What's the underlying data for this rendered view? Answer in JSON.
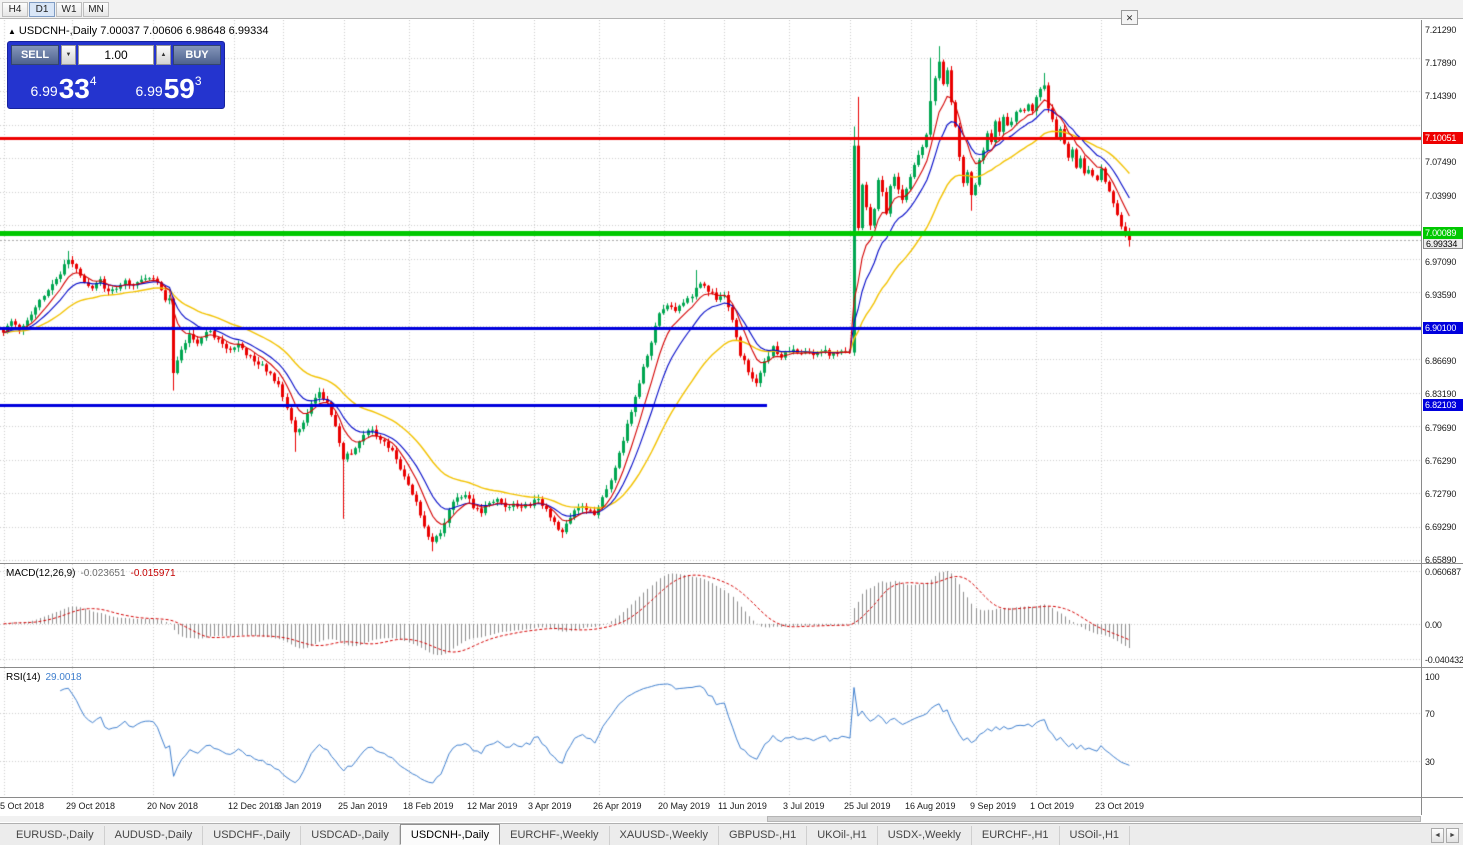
{
  "toolbar": {
    "timeframes": [
      "H4",
      "D1",
      "W1",
      "MN"
    ],
    "active_timeframe": "D1",
    "close_icon": "✕"
  },
  "chart_header": {
    "marker": "▲",
    "symbol": "USDCNH-,Daily",
    "ohlc": "7.00037 7.00606 6.98648 6.99334"
  },
  "oct": {
    "sell_label": "SELL",
    "buy_label": "BUY",
    "volume": "1.00",
    "spinner_down": "▼",
    "spinner_up": "▲",
    "sell_price_prefix": "6.99",
    "sell_price_big": "33",
    "sell_price_sup": "4",
    "buy_price_prefix": "6.99",
    "buy_price_big": "59",
    "buy_price_sup": "3"
  },
  "macd_panel": {
    "label": "MACD(12,26,9)",
    "value_main": "-0.023651",
    "value_signal": "-0.015971",
    "axis_labels": [
      "0.060687",
      "0.00",
      "-0.040432"
    ],
    "axis_values": [
      0.060687,
      0,
      -0.040432
    ]
  },
  "rsi_panel": {
    "label": "RSI(14)",
    "value": "29.0018",
    "axis_labels": [
      "100",
      "70",
      "30"
    ],
    "axis_values": [
      100,
      70,
      30
    ]
  },
  "tabs": {
    "items": [
      "EURUSD-,Daily",
      "AUDUSD-,Daily",
      "USDCHF-,Daily",
      "USDCAD-,Daily",
      "USDCNH-,Daily",
      "EURCHF-,Weekly",
      "XAUUSD-,Weekly",
      "GBPUSD-,H1",
      "UKOil-,H1",
      "USDX-,Weekly",
      "EURCHF-,H1",
      "USOil-,H1"
    ],
    "active_index": 4,
    "scroll_left_icon": "◄",
    "scroll_right_icon": "►"
  },
  "chart_data": {
    "type": "candlestick",
    "title": "USDCNH-,Daily",
    "symbol": "USDCNH-",
    "timeframe": "Daily",
    "current": {
      "open": 7.00037,
      "high": 7.00606,
      "low": 6.98648,
      "close": 6.99334
    },
    "y_min": 6.6589,
    "y_max": 7.2129,
    "grid_step": 0.035,
    "y_grid_labels": [
      "6.65890",
      "6.69290",
      "6.72790",
      "6.76290",
      "6.79690",
      "6.83190",
      "6.86690",
      "6.90190",
      "6.93590",
      "6.97090",
      "7.00490",
      "7.03990",
      "7.07490",
      "7.10890",
      "7.14390",
      "7.17890",
      "7.21290"
    ],
    "x_ticks": {
      "labels": [
        "5 Oct 2018",
        "29 Oct 2018",
        "20 Nov 2018",
        "12 Dec 2018",
        "3 Jan 2019",
        "25 Jan 2019",
        "18 Feb 2019",
        "12 Mar 2019",
        "3 Apr 2019",
        "26 Apr 2019",
        "20 May 2019",
        "11 Jun 2019",
        "3 Jul 2019",
        "25 Jul 2019",
        "16 Aug 2019",
        "9 Sep 2019",
        "1 Oct 2019",
        "23 Oct 2019"
      ],
      "candle_indices": [
        0,
        17,
        37,
        57,
        69,
        84,
        100,
        116,
        131,
        147,
        163,
        178,
        194,
        209,
        224,
        240,
        255,
        271
      ]
    },
    "n_candles": 279,
    "close_anchors": [
      [
        0,
        6.895
      ],
      [
        2,
        6.91
      ],
      [
        4,
        6.9
      ],
      [
        6,
        6.908
      ],
      [
        8,
        6.922
      ],
      [
        10,
        6.935
      ],
      [
        12,
        6.948
      ],
      [
        14,
        6.958
      ],
      [
        16,
        6.975
      ],
      [
        18,
        6.962
      ],
      [
        20,
        6.948
      ],
      [
        22,
        6.942
      ],
      [
        24,
        6.952
      ],
      [
        26,
        6.938
      ],
      [
        28,
        6.944
      ],
      [
        30,
        6.95
      ],
      [
        32,
        6.946
      ],
      [
        34,
        6.95
      ],
      [
        36,
        6.953
      ],
      [
        38,
        6.948
      ],
      [
        40,
        6.932
      ],
      [
        41,
        6.933
      ],
      [
        42,
        6.856
      ],
      [
        44,
        6.878
      ],
      [
        46,
        6.896
      ],
      [
        48,
        6.886
      ],
      [
        50,
        6.899
      ],
      [
        52,
        6.893
      ],
      [
        54,
        6.884
      ],
      [
        56,
        6.879
      ],
      [
        58,
        6.886
      ],
      [
        60,
        6.874
      ],
      [
        62,
        6.867
      ],
      [
        64,
        6.861
      ],
      [
        66,
        6.852
      ],
      [
        68,
        6.843
      ],
      [
        70,
        6.818
      ],
      [
        72,
        6.792
      ],
      [
        74,
        6.801
      ],
      [
        76,
        6.822
      ],
      [
        78,
        6.833
      ],
      [
        80,
        6.824
      ],
      [
        82,
        6.8
      ],
      [
        84,
        6.764
      ],
      [
        86,
        6.772
      ],
      [
        88,
        6.784
      ],
      [
        90,
        6.796
      ],
      [
        92,
        6.79
      ],
      [
        94,
        6.783
      ],
      [
        96,
        6.772
      ],
      [
        98,
        6.752
      ],
      [
        100,
        6.738
      ],
      [
        102,
        6.718
      ],
      [
        104,
        6.695
      ],
      [
        106,
        6.676
      ],
      [
        108,
        6.688
      ],
      [
        110,
        6.712
      ],
      [
        112,
        6.724
      ],
      [
        114,
        6.728
      ],
      [
        116,
        6.714
      ],
      [
        118,
        6.71
      ],
      [
        120,
        6.72
      ],
      [
        122,
        6.723
      ],
      [
        124,
        6.713
      ],
      [
        126,
        6.719
      ],
      [
        128,
        6.714
      ],
      [
        130,
        6.717
      ],
      [
        132,
        6.723
      ],
      [
        134,
        6.71
      ],
      [
        136,
        6.698
      ],
      [
        138,
        6.687
      ],
      [
        140,
        6.705
      ],
      [
        142,
        6.715
      ],
      [
        144,
        6.712
      ],
      [
        146,
        6.708
      ],
      [
        148,
        6.724
      ],
      [
        150,
        6.741
      ],
      [
        152,
        6.771
      ],
      [
        154,
        6.799
      ],
      [
        156,
        6.828
      ],
      [
        158,
        6.86
      ],
      [
        160,
        6.888
      ],
      [
        162,
        6.915
      ],
      [
        164,
        6.927
      ],
      [
        166,
        6.92
      ],
      [
        168,
        6.927
      ],
      [
        170,
        6.934
      ],
      [
        172,
        6.95
      ],
      [
        174,
        6.941
      ],
      [
        176,
        6.932
      ],
      [
        178,
        6.934
      ],
      [
        180,
        6.912
      ],
      [
        182,
        6.874
      ],
      [
        184,
        6.857
      ],
      [
        186,
        6.843
      ],
      [
        188,
        6.866
      ],
      [
        190,
        6.881
      ],
      [
        192,
        6.872
      ],
      [
        194,
        6.879
      ],
      [
        196,
        6.874
      ],
      [
        198,
        6.879
      ],
      [
        200,
        6.875
      ],
      [
        202,
        6.879
      ],
      [
        204,
        6.873
      ],
      [
        206,
        6.877
      ],
      [
        208,
        6.875
      ],
      [
        209,
        6.878
      ],
      [
        210,
        7.09
      ],
      [
        211,
        7.005
      ],
      [
        212,
        7.05
      ],
      [
        213,
        7.03
      ],
      [
        214,
        7.006
      ],
      [
        215,
        7.028
      ],
      [
        216,
        7.056
      ],
      [
        217,
        7.042
      ],
      [
        218,
        7.02
      ],
      [
        219,
        7.048
      ],
      [
        220,
        7.058
      ],
      [
        221,
        7.044
      ],
      [
        222,
        7.036
      ],
      [
        223,
        7.046
      ],
      [
        224,
        7.06
      ],
      [
        225,
        7.07
      ],
      [
        226,
        7.082
      ],
      [
        227,
        7.092
      ],
      [
        228,
        7.106
      ],
      [
        229,
        7.138
      ],
      [
        230,
        7.163
      ],
      [
        231,
        7.179
      ],
      [
        232,
        7.156
      ],
      [
        233,
        7.169
      ],
      [
        234,
        7.136
      ],
      [
        235,
        7.114
      ],
      [
        236,
        7.082
      ],
      [
        237,
        7.052
      ],
      [
        238,
        7.066
      ],
      [
        239,
        7.042
      ],
      [
        240,
        7.052
      ],
      [
        241,
        7.076
      ],
      [
        242,
        7.086
      ],
      [
        243,
        7.106
      ],
      [
        244,
        7.096
      ],
      [
        245,
        7.115
      ],
      [
        246,
        7.108
      ],
      [
        247,
        7.12
      ],
      [
        248,
        7.112
      ],
      [
        249,
        7.117
      ],
      [
        250,
        7.125
      ],
      [
        251,
        7.131
      ],
      [
        252,
        7.127
      ],
      [
        253,
        7.136
      ],
      [
        254,
        7.13
      ],
      [
        255,
        7.143
      ],
      [
        256,
        7.15
      ],
      [
        257,
        7.156
      ],
      [
        258,
        7.131
      ],
      [
        259,
        7.119
      ],
      [
        260,
        7.101
      ],
      [
        261,
        7.111
      ],
      [
        262,
        7.094
      ],
      [
        263,
        7.081
      ],
      [
        264,
        7.087
      ],
      [
        265,
        7.071
      ],
      [
        266,
        7.077
      ],
      [
        267,
        7.061
      ],
      [
        268,
        7.068
      ],
      [
        269,
        7.062
      ],
      [
        270,
        7.056
      ],
      [
        271,
        7.066
      ],
      [
        272,
        7.056
      ],
      [
        273,
        7.043
      ],
      [
        274,
        7.031
      ],
      [
        275,
        7.019
      ],
      [
        276,
        7.008
      ],
      [
        277,
        7.0
      ],
      [
        278,
        6.9933
      ]
    ],
    "spikes": [
      {
        "i": 16,
        "high": 6.982
      },
      {
        "i": 42,
        "low": 6.836
      },
      {
        "i": 72,
        "low": 6.772
      },
      {
        "i": 84,
        "low": 6.702
      },
      {
        "i": 106,
        "low": 6.668
      },
      {
        "i": 138,
        "low": 6.682
      },
      {
        "i": 171,
        "high": 6.962
      },
      {
        "i": 210,
        "high": 7.112
      },
      {
        "i": 211,
        "high": 7.143
      },
      {
        "i": 229,
        "high": 7.184
      },
      {
        "i": 231,
        "high": 7.196
      },
      {
        "i": 239,
        "low": 7.024
      },
      {
        "i": 257,
        "high": 7.168
      }
    ],
    "hlines": [
      {
        "price": 7.10051,
        "label": "7.10051",
        "color": "#ee0000",
        "width": 3,
        "extent": 1
      },
      {
        "price": 7.00089,
        "label": "7.00089",
        "color": "#00c800",
        "width": 5,
        "extent": 1
      },
      {
        "price": 6.901,
        "label": "6.90100",
        "color": "#0000dd",
        "width": 3,
        "extent": 1
      },
      {
        "price": 6.82103,
        "label": "6.82103",
        "color": "#0000dd",
        "width": 3,
        "extent": 0.54
      }
    ],
    "axis_special_labels": [
      {
        "name": "resistance-level-label",
        "text": "7.10051",
        "price": 7.10051,
        "bg": "#ee0000",
        "fg": "#ffffff"
      },
      {
        "name": "bid-price-label",
        "text": "6.99334",
        "price": 6.99334,
        "dy": 3,
        "bg": "#ececec",
        "fg": "#000000",
        "border": "#8a8a8a"
      },
      {
        "name": "support-level-label",
        "text": "7.00089",
        "price": 7.00089,
        "bg": "#00c800",
        "fg": "#ffffff"
      },
      {
        "name": "blue-level-label-1",
        "text": "6.90100",
        "price": 6.901,
        "bg": "#0000dd",
        "fg": "#ffffff"
      },
      {
        "name": "blue-level-label-2",
        "text": "6.82103",
        "price": 6.82103,
        "bg": "#0000dd",
        "fg": "#ffffff"
      }
    ],
    "ma_lines": [
      {
        "period": 30,
        "color": "#f2c200"
      },
      {
        "period": 13,
        "color": "#0008c8"
      },
      {
        "period": 7,
        "color": "#d40000"
      }
    ],
    "macd": {
      "fast": 12,
      "slow": 26,
      "signal": 9,
      "display_max": 0.060687,
      "display_min": -0.040432,
      "last_main": -0.023651,
      "last_signal": -0.015971,
      "hist_color": "#8f8f8f",
      "signal_color": "#d40000"
    },
    "rsi": {
      "period": 14,
      "last": 29.0018,
      "levels": [
        70,
        30
      ],
      "line_color": "#3f7fce"
    },
    "style": {
      "candle_up": "#00a651",
      "candle_down": "#ea0000",
      "grid": "#cdcdcd",
      "bid_line": "#aaaaaa"
    }
  }
}
